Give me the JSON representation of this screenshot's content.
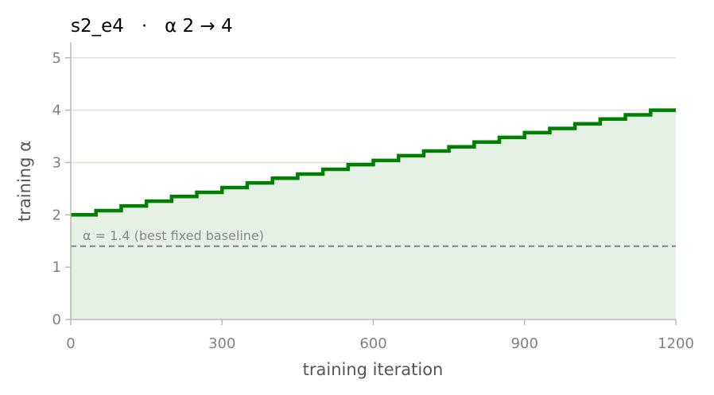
{
  "chart_data": {
    "type": "line",
    "title": "s2_e4   ·   α 2 → 4",
    "xlabel": "training iteration",
    "ylabel": "training α",
    "xlim": [
      0,
      1200
    ],
    "ylim": [
      0,
      5.3
    ],
    "xticks": [
      0,
      300,
      600,
      900,
      1200
    ],
    "yticks": [
      0,
      1,
      2,
      3,
      4,
      5
    ],
    "grid": "horizontal",
    "step_width": 50,
    "series": [
      {
        "color": "#008000",
        "fill": "#e5f1e5",
        "x": [
          0,
          50,
          100,
          150,
          200,
          250,
          300,
          350,
          400,
          450,
          500,
          550,
          600,
          650,
          700,
          750,
          800,
          850,
          900,
          950,
          1000,
          1050,
          1100,
          1150
        ],
        "y": [
          2.0,
          2.08,
          2.17,
          2.26,
          2.35,
          2.43,
          2.52,
          2.61,
          2.7,
          2.78,
          2.87,
          2.96,
          3.04,
          3.13,
          3.22,
          3.3,
          3.39,
          3.48,
          3.57,
          3.65,
          3.74,
          3.83,
          3.91,
          4.0
        ]
      }
    ],
    "baseline": {
      "value": 1.4,
      "label": "α = 1.4 (best fixed baseline)",
      "color": "#808080"
    }
  }
}
